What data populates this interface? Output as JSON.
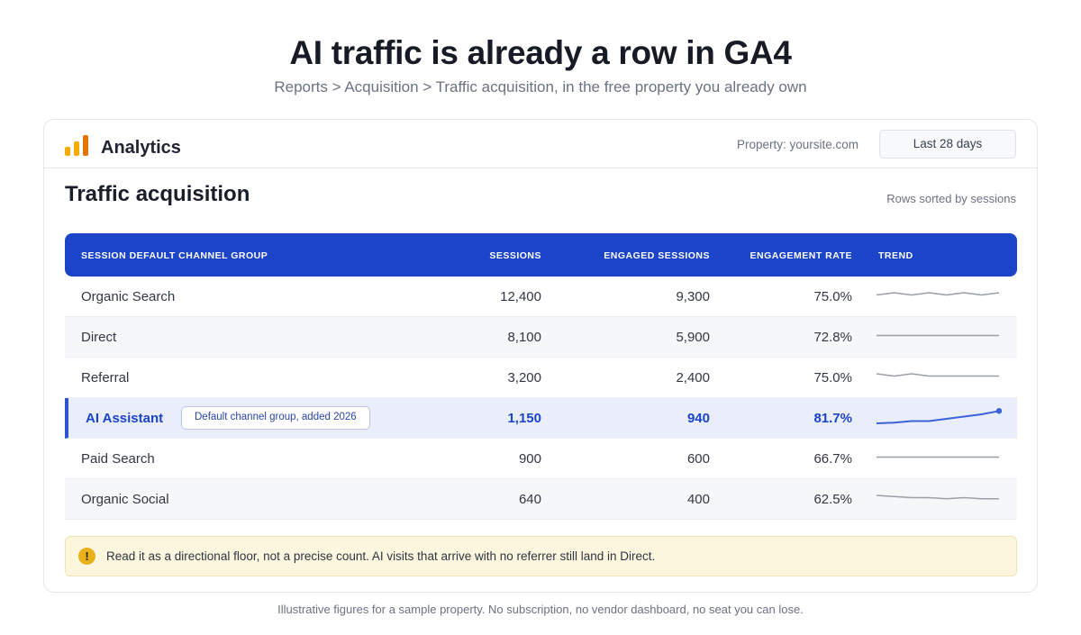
{
  "headline": "AI traffic is already a row in GA4",
  "subline": "Reports > Acquisition > Traffic acquisition, in the free property you already own",
  "app": {
    "name": "Analytics",
    "property": "Property: yoursite.com",
    "date_range": "Last 28 days",
    "logo_colors": [
      "#f9ab00",
      "#f9ab00",
      "#e37400"
    ]
  },
  "report": {
    "title": "Traffic acquisition",
    "sort_note": "Rows sorted by sessions"
  },
  "table": {
    "headers": {
      "channel": "SESSION DEFAULT CHANNEL GROUP",
      "sessions": "SESSIONS",
      "engaged": "ENGAGED SESSIONS",
      "rate": "ENGAGEMENT RATE",
      "trend": "TREND"
    },
    "rows": [
      {
        "channel": "Organic Search",
        "sessions": "12,400",
        "engaged": "9,300",
        "rate": "75.0%",
        "trend": [
          5,
          6,
          5,
          6,
          5,
          6,
          5,
          6
        ]
      },
      {
        "channel": "Direct",
        "sessions": "8,100",
        "engaged": "5,900",
        "rate": "72.8%",
        "trend": [
          5,
          5,
          5,
          5,
          5,
          5,
          5,
          5
        ]
      },
      {
        "channel": "Referral",
        "sessions": "3,200",
        "engaged": "2,400",
        "rate": "75.0%",
        "trend": [
          6,
          5,
          6,
          5,
          5,
          5,
          5,
          5
        ]
      },
      {
        "channel": "AI Assistant",
        "badge": "Default channel group, added 2026",
        "sessions": "1,150",
        "engaged": "940",
        "rate": "81.7%",
        "trend": [
          2,
          2.3,
          3,
          3,
          4,
          5,
          6,
          7.5
        ],
        "highlighted": true
      },
      {
        "channel": "Paid Search",
        "sessions": "900",
        "engaged": "600",
        "rate": "66.7%",
        "trend": [
          5,
          5,
          5,
          5,
          5,
          5,
          5,
          5
        ]
      },
      {
        "channel": "Organic Social",
        "sessions": "640",
        "engaged": "400",
        "rate": "62.5%",
        "trend": [
          6,
          5.5,
          5,
          5,
          4.5,
          5,
          4.5,
          4.5
        ]
      }
    ]
  },
  "notice": {
    "icon": "warning-icon",
    "text": "Read it as a directional floor, not a precise count. AI visits that arrive with no referrer still land in Direct."
  },
  "footnote": "Illustrative figures for a sample property. No subscription, no vendor dashboard, no seat you can lose.",
  "colors": {
    "header_bg": "#1c44c9",
    "highlight_bg": "#eaeefa",
    "highlight_text": "#1c44c9",
    "trend_line": "#9aa0a8",
    "trend_highlight": "#3b62d8"
  }
}
